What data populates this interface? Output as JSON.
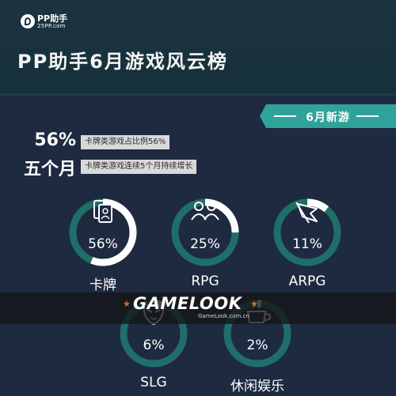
{
  "header": {
    "logo_name": "PP助手",
    "logo_domain": "25PP.com",
    "title": "PP助手6月游戏风云榜"
  },
  "banner": {
    "label": "6月新游"
  },
  "stats": [
    {
      "value": "56%",
      "note": "卡牌类游戏占比例56%"
    },
    {
      "value": "五个月",
      "note": "卡牌类游戏连续5个月持续增长"
    }
  ],
  "categories": [
    {
      "name": "卡牌",
      "percent": "56%",
      "share": 56,
      "icon": "card-icon"
    },
    {
      "name": "RPG",
      "percent": "25%",
      "share": 25,
      "icon": "people-icon"
    },
    {
      "name": "ARPG",
      "percent": "11%",
      "share": 11,
      "icon": "flag-icon"
    },
    {
      "name": "SLG",
      "percent": "6%",
      "share": 6,
      "icon": "mask-icon"
    },
    {
      "name": "休闲娱乐",
      "percent": "2%",
      "share": 2,
      "icon": "cup-icon"
    }
  ],
  "watermark": {
    "text": "GAMELOOK",
    "url": "GameLook.com.cn"
  },
  "colors": {
    "ring_track": "#206e68",
    "ring_fill": "#ffffff",
    "accent": "#2fa39a",
    "background": "#1e2a40"
  }
}
